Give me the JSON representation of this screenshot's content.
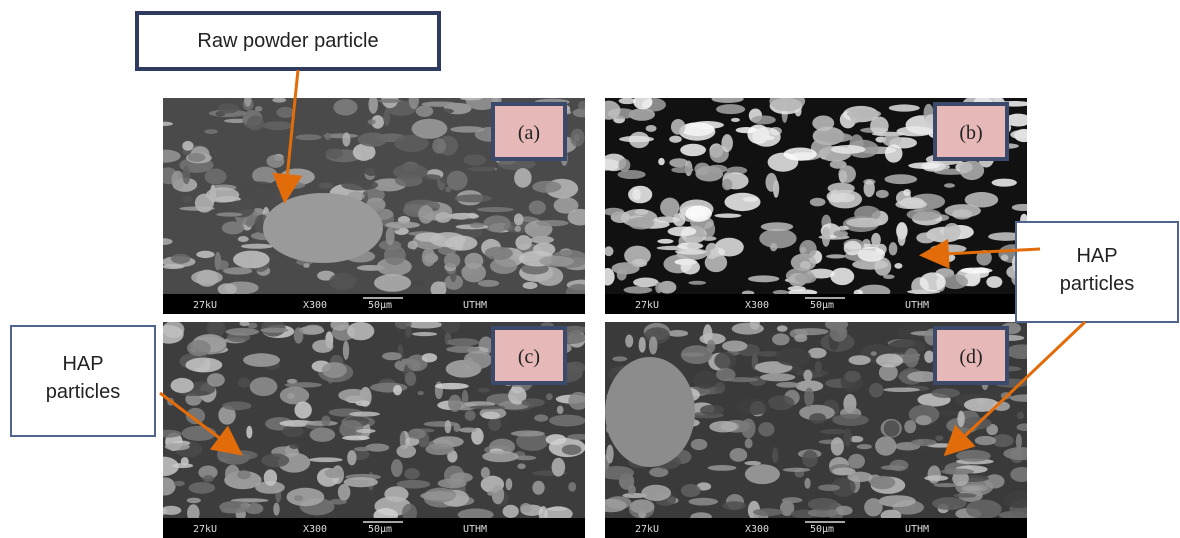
{
  "callouts": [
    {
      "text": "Raw powder particle"
    },
    {
      "text": "HAP particles"
    },
    {
      "text": "HAP particles"
    }
  ],
  "panels": [
    {
      "label": "(a)",
      "bar": [
        "27kU",
        "X300",
        "50µm",
        "UTHM"
      ]
    },
    {
      "label": "(b)",
      "bar": [
        "27kU",
        "X300",
        "50µm",
        "UTHM"
      ]
    },
    {
      "label": "(c)",
      "bar": [
        "27kU",
        "X300",
        "50µm",
        "UTHM"
      ]
    },
    {
      "label": "(d)",
      "bar": [
        "27kU",
        "X300",
        "50µm",
        "UTHM"
      ]
    }
  ]
}
